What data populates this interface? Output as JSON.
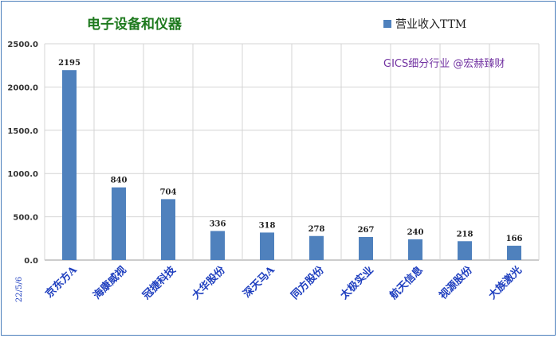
{
  "chart_data": {
    "type": "bar",
    "title": "电子设备和仪器",
    "source_note": "GICS细分行业 @宏赫臻财",
    "date_label": "22/5/6",
    "categories": [
      "京东方A",
      "海康威视",
      "冠捷科技",
      "大华股份",
      "深天马A",
      "同方股份",
      "太极实业",
      "航天信息",
      "视源股份",
      "大族激光"
    ],
    "series": [
      {
        "name": "营业收入TTM",
        "values": [
          2195,
          840,
          704,
          336,
          318,
          278,
          267,
          240,
          218,
          166
        ]
      }
    ],
    "y_ticks": [
      "0.0",
      "500.0",
      "1000.0",
      "1500.0",
      "2000.0",
      "2500.0"
    ],
    "ylim": [
      0,
      2500
    ],
    "grid": true,
    "legend_position": "top-right",
    "bar_color": "#4f81bd"
  }
}
